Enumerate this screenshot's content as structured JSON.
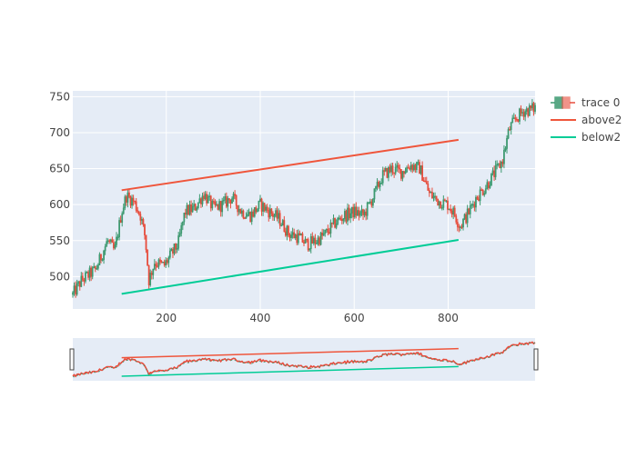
{
  "chart_data": {
    "type": "candlestick",
    "title": "",
    "xlabel": "",
    "ylabel": "",
    "xlim": [
      1,
      985
    ],
    "ylim": [
      455,
      758
    ],
    "x_ticks": [
      200,
      400,
      600,
      800
    ],
    "y_ticks": [
      500,
      550,
      600,
      650,
      700,
      750
    ],
    "grid": true,
    "legend_position": "top-right",
    "rangeslider": true,
    "colors": {
      "increasing": "#3d9970",
      "decreasing": "#e74c3c",
      "above_line": "#ef553b",
      "below_line": "#00cc96",
      "plot_bg": "#e5ecf6",
      "grid": "#ffffff",
      "text": "#444444"
    },
    "price_path": [
      [
        1,
        475
      ],
      [
        20,
        495
      ],
      [
        50,
        510
      ],
      [
        75,
        550
      ],
      [
        90,
        535
      ],
      [
        105,
        590
      ],
      [
        115,
        612
      ],
      [
        130,
        605
      ],
      [
        145,
        585
      ],
      [
        155,
        555
      ],
      [
        163,
        495
      ],
      [
        175,
        520
      ],
      [
        195,
        515
      ],
      [
        210,
        530
      ],
      [
        225,
        545
      ],
      [
        240,
        590
      ],
      [
        260,
        595
      ],
      [
        280,
        615
      ],
      [
        300,
        595
      ],
      [
        320,
        600
      ],
      [
        340,
        610
      ],
      [
        360,
        590
      ],
      [
        380,
        585
      ],
      [
        400,
        600
      ],
      [
        420,
        590
      ],
      [
        440,
        580
      ],
      [
        460,
        560
      ],
      [
        480,
        555
      ],
      [
        500,
        545
      ],
      [
        520,
        550
      ],
      [
        540,
        560
      ],
      [
        560,
        575
      ],
      [
        580,
        585
      ],
      [
        600,
        590
      ],
      [
        620,
        585
      ],
      [
        640,
        610
      ],
      [
        660,
        640
      ],
      [
        680,
        650
      ],
      [
        700,
        645
      ],
      [
        720,
        655
      ],
      [
        740,
        650
      ],
      [
        760,
        615
      ],
      [
        780,
        605
      ],
      [
        800,
        600
      ],
      [
        815,
        585
      ],
      [
        825,
        570
      ],
      [
        840,
        585
      ],
      [
        860,
        610
      ],
      [
        880,
        625
      ],
      [
        900,
        645
      ],
      [
        915,
        660
      ],
      [
        930,
        705
      ],
      [
        945,
        720
      ],
      [
        960,
        730
      ],
      [
        975,
        732
      ],
      [
        985,
        735
      ]
    ],
    "series": [
      {
        "name": "trace 0",
        "kind": "candlestick"
      },
      {
        "name": "above2",
        "kind": "line",
        "x": [
          105,
          822
        ],
        "y": [
          620,
          690
        ]
      },
      {
        "name": "below2",
        "kind": "line",
        "x": [
          105,
          822
        ],
        "y": [
          476,
          551
        ]
      }
    ]
  }
}
